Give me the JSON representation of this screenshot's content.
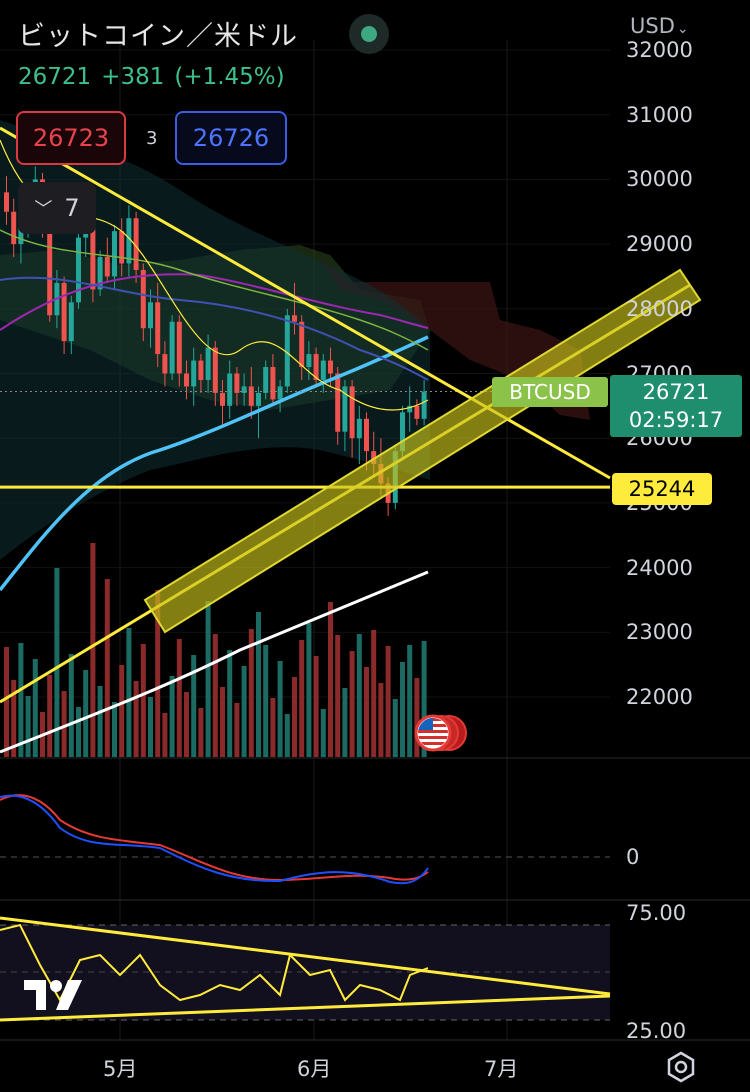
{
  "header": {
    "title": "ビットコイン／米ドル",
    "currency": "USD",
    "last_price": "26721",
    "change": "+381",
    "change_pct": "(+1.45%)"
  },
  "order": {
    "sell_price": "26723",
    "spread": "3",
    "buy_price": "26726"
  },
  "indicators": {
    "collapsed_count": "7"
  },
  "price_axis": {
    "labels": [
      "32000",
      "31000",
      "30000",
      "29000",
      "28000",
      "27000",
      "26000",
      "25000",
      "24000",
      "23000",
      "22000"
    ],
    "symbol_badge": "BTCUSD",
    "price_badge": "26721",
    "countdown": "02:59:17",
    "level_badge": "25244"
  },
  "macd_axis": {
    "zero_label": "0"
  },
  "rsi_axis": {
    "upper": "75.00",
    "lower": "25.00"
  },
  "time_axis": {
    "labels": [
      "5月",
      "6月",
      "7月"
    ]
  },
  "colors": {
    "up": "#26a69a",
    "down": "#ef5350",
    "trendline": "#ffeb3b",
    "ema_blue": "#4fc3f7",
    "current_price": "#1f8e6e",
    "level": "#ffeb3b"
  },
  "icons": {
    "live": "live-status-dot",
    "settings": "gear-icon",
    "event": "us-flag-icon",
    "logo": "tradingview-logo"
  },
  "chart_data": {
    "type": "candlestick",
    "symbol": "BTCUSD",
    "y_range": [
      21200,
      32200
    ],
    "last": 26721,
    "horizontal_level": 25244,
    "candles": [
      [
        29800,
        30050,
        29300,
        29500
      ],
      [
        29500,
        29700,
        28800,
        29000
      ],
      [
        29000,
        29400,
        28700,
        29300
      ],
      [
        29300,
        29800,
        29100,
        29600
      ],
      [
        29600,
        30200,
        29400,
        30000
      ],
      [
        30000,
        30100,
        29100,
        29200
      ],
      [
        29200,
        29300,
        27800,
        27900
      ],
      [
        27900,
        28600,
        27700,
        28400
      ],
      [
        28400,
        28500,
        27300,
        27500
      ],
      [
        27500,
        28200,
        27300,
        28100
      ],
      [
        28100,
        29200,
        28000,
        29100
      ],
      [
        29100,
        29600,
        28800,
        29300
      ],
      [
        29300,
        29500,
        28100,
        28300
      ],
      [
        28300,
        28900,
        28200,
        28800
      ],
      [
        28800,
        29100,
        28400,
        28500
      ],
      [
        28500,
        29300,
        28300,
        29200
      ],
      [
        29200,
        29400,
        28500,
        28700
      ],
      [
        28700,
        29600,
        28500,
        29400
      ],
      [
        29400,
        29500,
        28400,
        28600
      ],
      [
        28600,
        28700,
        27500,
        27700
      ],
      [
        27700,
        28300,
        27400,
        28100
      ],
      [
        28100,
        28400,
        27100,
        27300
      ],
      [
        27300,
        27500,
        26800,
        27000
      ],
      [
        27000,
        27900,
        26900,
        27800
      ],
      [
        27800,
        27900,
        26800,
        27000
      ],
      [
        27000,
        27200,
        26600,
        26800
      ],
      [
        26800,
        27400,
        26500,
        27200
      ],
      [
        27200,
        27300,
        26700,
        26900
      ],
      [
        26900,
        27600,
        26700,
        27400
      ],
      [
        27400,
        27500,
        26500,
        26700
      ],
      [
        26700,
        26900,
        26200,
        26500
      ],
      [
        26500,
        27200,
        26300,
        27000
      ],
      [
        27000,
        27100,
        26500,
        26700
      ],
      [
        26700,
        27000,
        26500,
        26800
      ],
      [
        26800,
        27100,
        26300,
        26500
      ],
      [
        26500,
        26800,
        26000,
        26700
      ],
      [
        26700,
        27200,
        26600,
        27100
      ],
      [
        27100,
        27300,
        26500,
        26600
      ],
      [
        26600,
        26900,
        26400,
        26800
      ],
      [
        26800,
        28000,
        26700,
        27900
      ],
      [
        27900,
        28400,
        27600,
        27800
      ],
      [
        27800,
        27900,
        26900,
        27100
      ],
      [
        27100,
        27500,
        26900,
        27300
      ],
      [
        27300,
        27400,
        26800,
        26900
      ],
      [
        26900,
        27300,
        26700,
        27200
      ],
      [
        27200,
        27400,
        26800,
        27000
      ],
      [
        27000,
        27100,
        25900,
        26100
      ],
      [
        26100,
        26900,
        25800,
        26800
      ],
      [
        26800,
        26900,
        25700,
        26000
      ],
      [
        26000,
        26500,
        25600,
        26300
      ],
      [
        26300,
        26400,
        25500,
        25800
      ],
      [
        25800,
        26100,
        25400,
        25600
      ],
      [
        25600,
        26000,
        25100,
        25300
      ],
      [
        25300,
        25400,
        24800,
        25000
      ],
      [
        25000,
        25900,
        24900,
        25800
      ],
      [
        25800,
        26500,
        25700,
        26400
      ],
      [
        26400,
        26800,
        26100,
        26500
      ],
      [
        26500,
        26600,
        26200,
        26300
      ],
      [
        26300,
        26900,
        26200,
        26721
      ]
    ],
    "volume_ma_note": "white curve rising",
    "macd": {
      "zero": 0
    },
    "rsi": {
      "upper": 75,
      "lower": 25
    }
  }
}
